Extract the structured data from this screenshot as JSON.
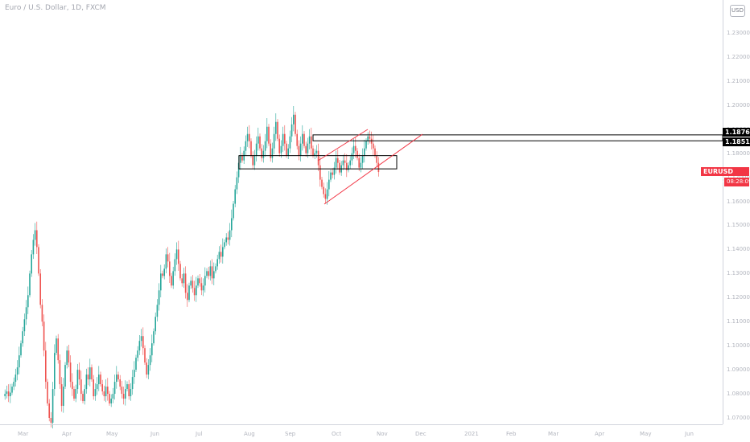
{
  "header": {
    "title": "Euro / U.S. Dollar, 1D, FXCM",
    "currency_button": "USD"
  },
  "colors": {
    "up": "#26a69a",
    "down": "#ef5350",
    "drawing_black": "#000000",
    "drawing_red": "#f23645",
    "axis_text": "#b2b5be",
    "axis_line": "#d1d4dc"
  },
  "chart_data": {
    "type": "candlestick",
    "symbol": "EURUSD",
    "last_price": "1.17223",
    "countdown": "08:28:09",
    "ylim": [
      1.075,
      1.24
    ],
    "y_ticks": [
      "1.23000",
      "1.22000",
      "1.21000",
      "1.20000",
      "1.19000",
      "1.18000",
      "1.17000",
      "1.16000",
      "1.15000",
      "1.14000",
      "1.13000",
      "1.12000",
      "1.11000",
      "1.10000",
      "1.09000",
      "1.08000",
      "1.07000"
    ],
    "x_ticks": [
      "Mar",
      "Apr",
      "May",
      "Jun",
      "Jul",
      "Aug",
      "Sep",
      "Oct",
      "Nov",
      "Dec",
      "2021",
      "Feb",
      "Mar",
      "Apr",
      "May",
      "Jun"
    ],
    "closes": [
      1.079,
      1.08,
      1.081,
      1.079,
      1.0805,
      1.083,
      1.085,
      1.088,
      1.091,
      1.096,
      1.101,
      1.106,
      1.111,
      1.116,
      1.121,
      1.13,
      1.138,
      1.144,
      1.148,
      1.141,
      1.13,
      1.117,
      1.11,
      1.098,
      1.085,
      1.076,
      1.07,
      1.068,
      1.082,
      1.097,
      1.103,
      1.094,
      1.084,
      1.075,
      1.083,
      1.092,
      1.098,
      1.093,
      1.085,
      1.082,
      1.078,
      1.082,
      1.09,
      1.086,
      1.08,
      1.077,
      1.082,
      1.088,
      1.086,
      1.091,
      1.086,
      1.079,
      1.082,
      1.084,
      1.088,
      1.084,
      1.081,
      1.079,
      1.083,
      1.08,
      1.076,
      1.078,
      1.08,
      1.085,
      1.088,
      1.086,
      1.083,
      1.08,
      1.078,
      1.082,
      1.084,
      1.079,
      1.082,
      1.087,
      1.09,
      1.095,
      1.098,
      1.102,
      1.104,
      1.099,
      1.093,
      1.088,
      1.092,
      1.096,
      1.101,
      1.106,
      1.112,
      1.117,
      1.123,
      1.13,
      1.129,
      1.132,
      1.138,
      1.135,
      1.129,
      1.125,
      1.131,
      1.136,
      1.14,
      1.134,
      1.128,
      1.126,
      1.13,
      1.122,
      1.119,
      1.125,
      1.127,
      1.124,
      1.121,
      1.125,
      1.128,
      1.126,
      1.123,
      1.125,
      1.129,
      1.131,
      1.129,
      1.133,
      1.128,
      1.131,
      1.133,
      1.136,
      1.139,
      1.137,
      1.141,
      1.143,
      1.145,
      1.144,
      1.148,
      1.153,
      1.159,
      1.165,
      1.17,
      1.176,
      1.179,
      1.177,
      1.181,
      1.185,
      1.188,
      1.185,
      1.179,
      1.175,
      1.179,
      1.184,
      1.187,
      1.182,
      1.178,
      1.181,
      1.185,
      1.191,
      1.184,
      1.178,
      1.182,
      1.188,
      1.193,
      1.186,
      1.18,
      1.183,
      1.188,
      1.184,
      1.179,
      1.182,
      1.187,
      1.192,
      1.196,
      1.188,
      1.183,
      1.179,
      1.184,
      1.188,
      1.183,
      1.18,
      1.184,
      1.187,
      1.182,
      1.179,
      1.18,
      1.181,
      1.175,
      1.169,
      1.166,
      1.163,
      1.161,
      1.165,
      1.169,
      1.172,
      1.171,
      1.174,
      1.178,
      1.176,
      1.172,
      1.175,
      1.177,
      1.176,
      1.173,
      1.175,
      1.177,
      1.18,
      1.183,
      1.181,
      1.178,
      1.174,
      1.176,
      1.179,
      1.182,
      1.185,
      1.187,
      1.186,
      1.184,
      1.182,
      1.179,
      1.176,
      1.1722
    ]
  },
  "drawings": {
    "upper_box": {
      "top": "1.18762",
      "bottom": "1.18517"
    },
    "lower_box": {
      "top": 1.179,
      "bottom": 1.1735
    },
    "channel": {
      "from_price": 1.16,
      "to_price": 1.188
    }
  }
}
